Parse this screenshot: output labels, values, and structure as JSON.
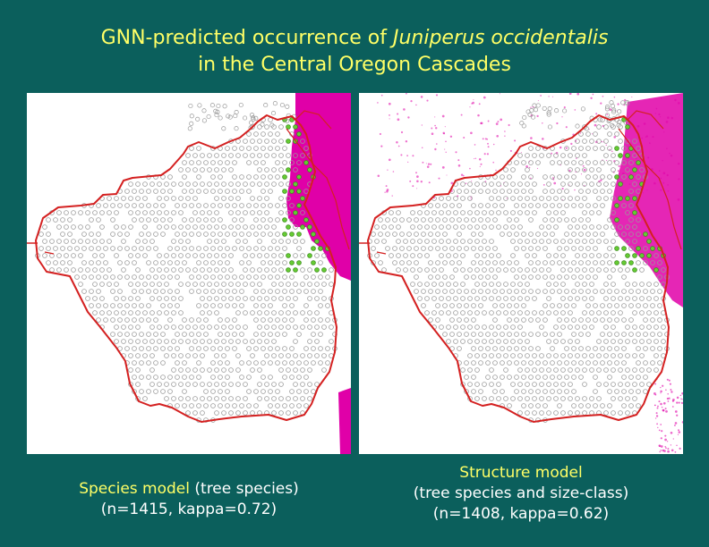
{
  "title": {
    "prefix": "GNN-predicted occurrence of",
    "species": "Juniperus occidentalis",
    "line2": "in the Central Oregon Cascades"
  },
  "maps": {
    "left_label": "Species model map",
    "right_label": "Structure model map"
  },
  "captions": {
    "left": {
      "model": "Species model",
      "detail": "(tree species)",
      "stats": "(n=1415, kappa=0.72)"
    },
    "right": {
      "model": "Structure model",
      "detail": "(tree species and size-class)",
      "stats": "(n=1408, kappa=0.62)"
    }
  },
  "colors": {
    "background": "#0b5f5c",
    "title_text": "#ffff66",
    "caption_text": "#ffffff",
    "boundary": "#d42020",
    "presence": "#e000a8",
    "plot_present": "#66cc33",
    "plot_absent": "#9a9a9a"
  }
}
